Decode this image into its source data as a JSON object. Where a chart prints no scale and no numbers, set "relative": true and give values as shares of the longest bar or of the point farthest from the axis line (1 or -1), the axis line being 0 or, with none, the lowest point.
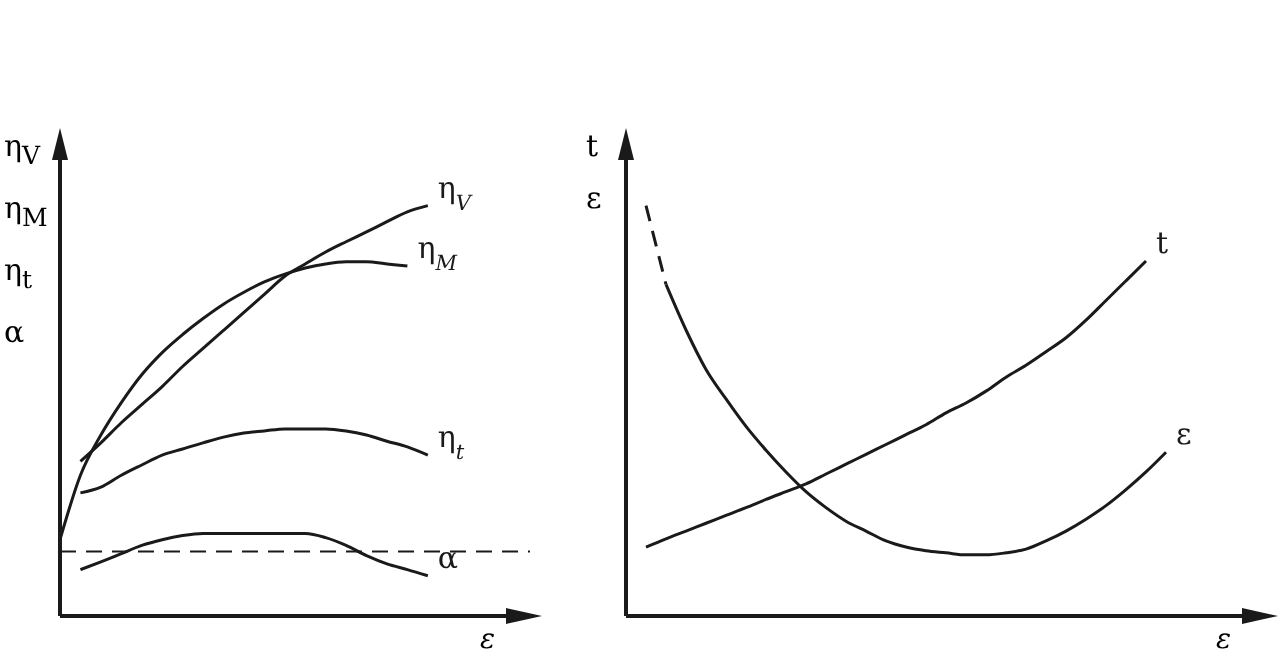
{
  "chart_data": [
    {
      "type": "line",
      "relative": true,
      "xlabel": "ε",
      "ylabel": "η$_{V}$\nη$_{M}$\nη$_{t}$\nα",
      "grid": false,
      "categories": [
        null,
        null,
        null,
        null,
        null,
        null,
        null,
        null,
        null,
        null,
        null,
        null,
        null,
        null,
        null,
        null,
        null,
        null,
        null,
        null,
        null,
        null,
        null,
        null
      ],
      "ref_lines": [
        {
          "axis": "y",
          "value": 0.157,
          "line_style": "dashed",
          "color": "#1a1a1a"
        }
      ],
      "series": [
        {
          "name": "η$_{V}$",
          "color": "#1a1a1a",
          "values": [
            null,
            0.377,
            0.422,
            0.471,
            0.515,
            0.559,
            0.608,
            0.652,
            0.696,
            0.74,
            0.784,
            0.828,
            0.858,
            0.887,
            0.912,
            0.936,
            0.961,
            0.985,
            1.0,
            null,
            null,
            null,
            null,
            null
          ]
        },
        {
          "name": "η$_{M}$",
          "color": "#1a1a1a",
          "values": [
            0.186,
            0.343,
            0.441,
            0.52,
            0.588,
            0.642,
            0.686,
            0.725,
            0.76,
            0.789,
            0.814,
            0.833,
            0.848,
            0.858,
            0.863,
            0.863,
            0.858,
            0.853,
            null,
            null,
            null,
            null,
            null,
            null
          ]
        },
        {
          "name": "η$_{t}$",
          "color": "#1a1a1a",
          "values": [
            null,
            0.3,
            0.314,
            0.343,
            0.368,
            0.392,
            0.407,
            0.422,
            0.436,
            0.446,
            0.451,
            0.456,
            0.456,
            0.456,
            0.451,
            0.441,
            0.426,
            0.412,
            0.392,
            null,
            null,
            null,
            null,
            null
          ]
        },
        {
          "name": "α",
          "color": "#1a1a1a",
          "values": [
            null,
            0.113,
            0.132,
            0.152,
            0.172,
            0.186,
            0.196,
            0.201,
            0.201,
            0.201,
            0.201,
            0.201,
            0.201,
            0.191,
            0.172,
            0.147,
            0.127,
            0.113,
            0.098,
            null,
            null,
            null,
            null,
            null
          ]
        }
      ]
    },
    {
      "type": "line",
      "relative": true,
      "xlabel": "ε",
      "ylabel": "t\nε",
      "grid": false,
      "categories": [
        null,
        null,
        null,
        null,
        null,
        null,
        null,
        null,
        null,
        null,
        null,
        null,
        null,
        null,
        null,
        null,
        null,
        null,
        null,
        null,
        null,
        null,
        null,
        null,
        null,
        null,
        null,
        null,
        null,
        null,
        null,
        null,
        null
      ],
      "series": [
        {
          "name": "t",
          "color": "#1a1a1a",
          "values": [
            null,
            0.168,
            0.188,
            0.207,
            0.226,
            0.245,
            0.264,
            0.284,
            0.303,
            0.322,
            0.346,
            0.37,
            0.394,
            0.418,
            0.442,
            0.466,
            0.495,
            0.519,
            0.548,
            0.582,
            0.611,
            0.644,
            0.678,
            0.721,
            0.769,
            0.817,
            0.865,
            null,
            null,
            null,
            null,
            null,
            null
          ]
        },
        {
          "color": "#1a1a1a",
          "line_style": "dashed",
          "values": [
            null,
            1.0,
            0.808,
            null,
            null,
            null,
            null,
            null,
            null,
            null,
            null,
            null,
            null,
            null,
            null,
            null,
            null,
            null,
            null,
            null,
            null,
            null,
            null,
            null,
            null,
            null,
            null,
            null,
            null,
            null,
            null,
            null,
            null
          ]
        },
        {
          "name": "ε",
          "color": "#1a1a1a",
          "values": [
            null,
            null,
            0.808,
            0.697,
            0.601,
            0.529,
            0.462,
            0.404,
            0.351,
            0.303,
            0.264,
            0.231,
            0.207,
            0.183,
            0.168,
            0.159,
            0.154,
            0.149,
            0.149,
            0.154,
            0.163,
            0.183,
            0.207,
            0.236,
            0.269,
            0.308,
            0.351,
            0.399,
            null,
            null,
            null,
            null,
            null
          ]
        }
      ]
    }
  ]
}
